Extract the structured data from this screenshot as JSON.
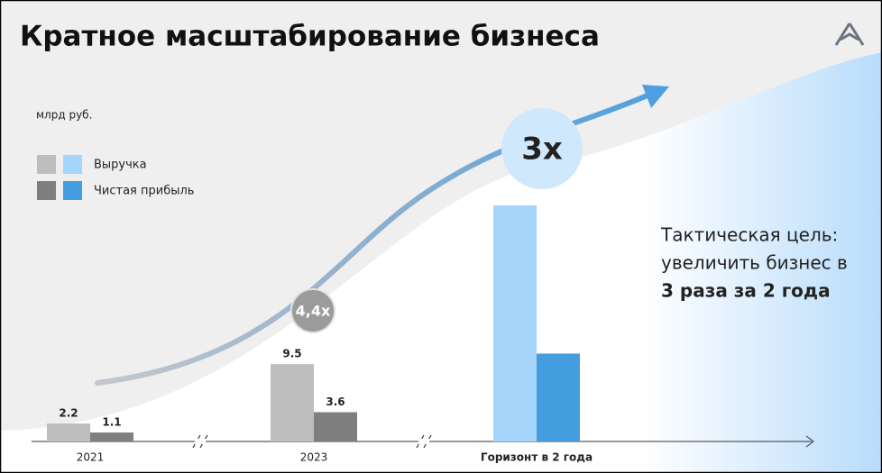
{
  "title": "Кратное масштабирование бизнеса",
  "badges": [
    "4,4x",
    "3x"
  ],
  "callout": [
    "Тактическая цель:",
    "увеличить бизнес в",
    "3 раза за 2 года"
  ],
  "chart_data": {
    "type": "bar",
    "unit": "млрд руб.",
    "categories": [
      "2021",
      "2023",
      "Горизонт в 2 года"
    ],
    "series": [
      {
        "name": "Выручка",
        "colors": [
          "#bdbdbd",
          "#bdbdbd",
          "#a6d5fb"
        ],
        "values": [
          2.2,
          9.5,
          29
        ],
        "value_labels": [
          "2.2",
          "9.5",
          null
        ]
      },
      {
        "name": "Чистая прибыль",
        "colors": [
          "#7f7f7f",
          "#7f7f7f",
          "#449ddf"
        ],
        "values": [
          1.1,
          3.6,
          10.8
        ],
        "value_labels": [
          "1.1",
          "3.6",
          null
        ]
      }
    ],
    "ylim": [
      0,
      30
    ]
  }
}
